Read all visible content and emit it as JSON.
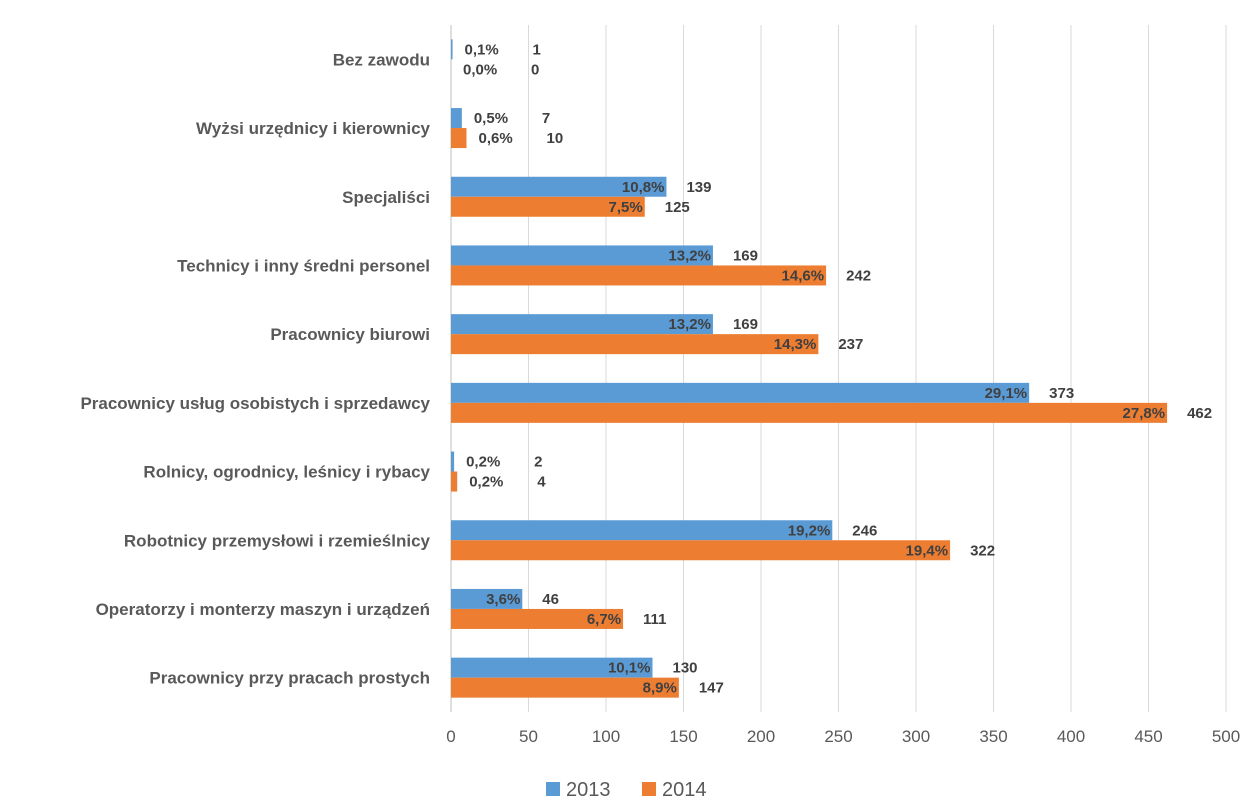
{
  "chart_data": {
    "type": "bar",
    "orientation": "horizontal",
    "categories": [
      "Bez zawodu",
      "Wyżsi urzędnicy i kierownicy",
      "Specjaliści",
      "Technicy i inny średni personel",
      "Pracownicy biurowi",
      "Pracownicy usług osobistych i sprzedawcy",
      "Rolnicy, ogrodnicy, leśnicy i rybacy",
      "Robotnicy przemysłowi i rzemieślnicy",
      "Operatorzy i monterzy maszyn i urządzeń",
      "Pracownicy przy pracach prostych"
    ],
    "series": [
      {
        "name": "2013",
        "color": "#5B9BD5",
        "values": [
          1,
          7,
          139,
          169,
          169,
          373,
          2,
          246,
          46,
          130
        ],
        "percent_labels": [
          "0,1%",
          "0,5%",
          "10,8%",
          "13,2%",
          "13,2%",
          "29,1%",
          "0,2%",
          "19,2%",
          "3,6%",
          "10,1%"
        ],
        "value_labels": [
          "1",
          "7",
          "139",
          "169",
          "169",
          "373",
          "2",
          "246",
          "46",
          "130"
        ]
      },
      {
        "name": "2014",
        "color": "#ED7D31",
        "values": [
          0,
          10,
          125,
          242,
          237,
          462,
          4,
          322,
          111,
          147
        ],
        "percent_labels": [
          "0,0%",
          "0,6%",
          "7,5%",
          "14,6%",
          "14,3%",
          "27,8%",
          "0,2%",
          "19,4%",
          "6,7%",
          "8,9%"
        ],
        "value_labels": [
          "0",
          "10",
          "125",
          "242",
          "237",
          "462",
          "4",
          "322",
          "111",
          "147"
        ]
      }
    ],
    "xlim": [
      0,
      500
    ],
    "xticks": [
      0,
      50,
      100,
      150,
      200,
      250,
      300,
      350,
      400,
      450,
      500
    ],
    "grid": "vertical",
    "legend_position": "bottom",
    "title": "",
    "xlabel": "",
    "ylabel": ""
  }
}
